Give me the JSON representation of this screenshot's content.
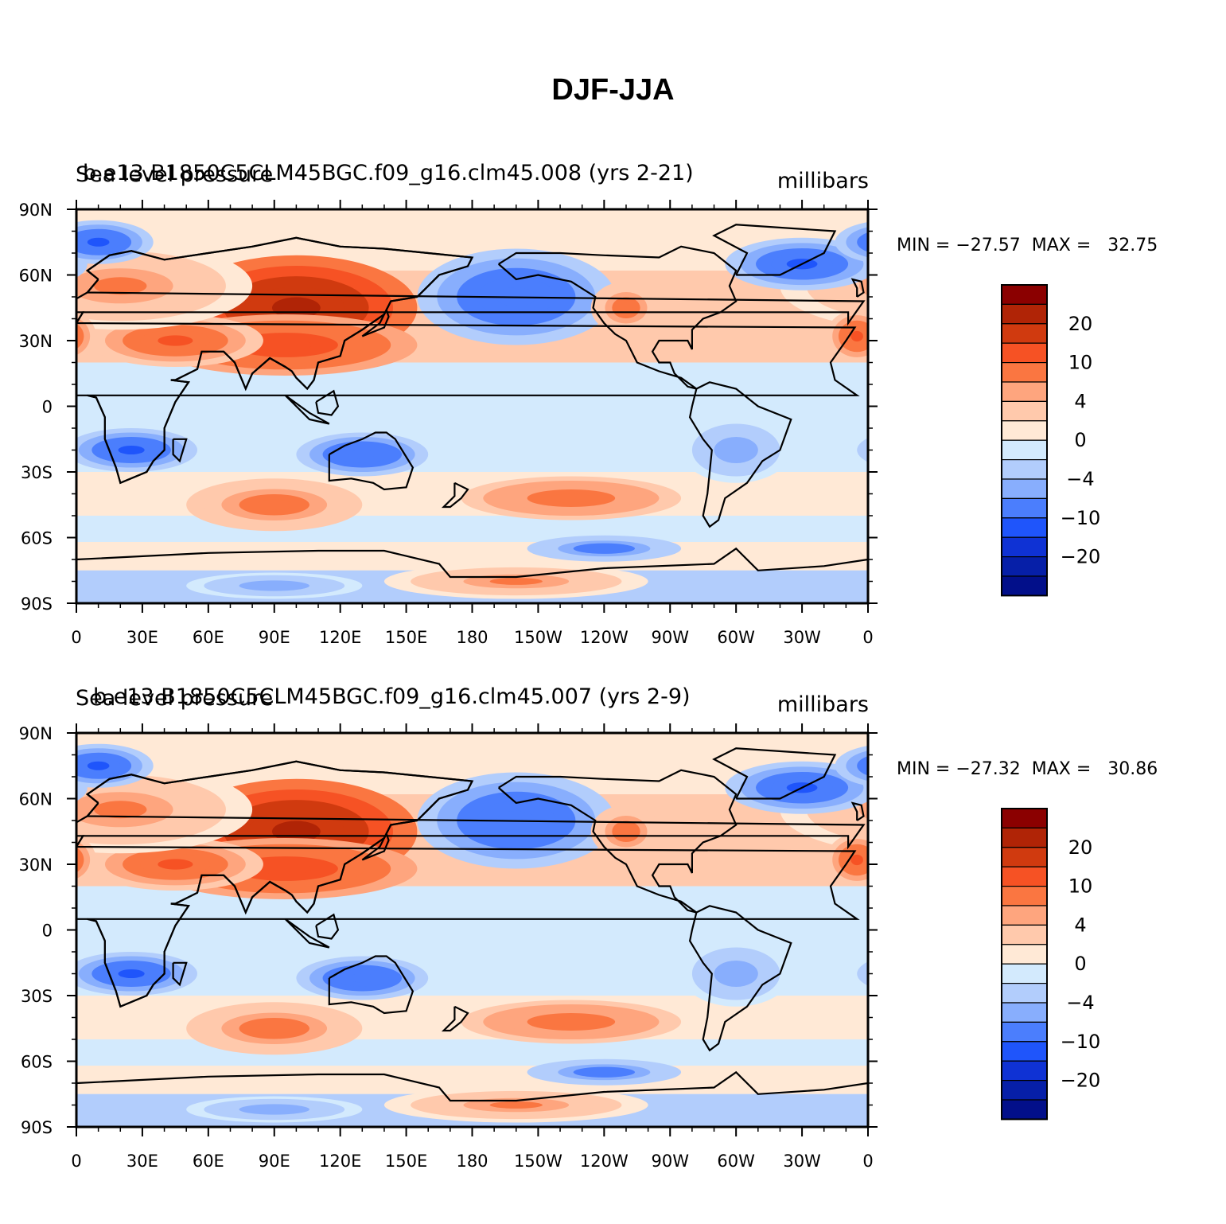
{
  "title": "DJF-JJA",
  "x_ticks": [
    "0",
    "30E",
    "60E",
    "90E",
    "120E",
    "150E",
    "180",
    "150W",
    "120W",
    "90W",
    "60W",
    "30W",
    "0"
  ],
  "y_ticks": [
    "90N",
    "60N",
    "30N",
    "0",
    "30S",
    "60S",
    "90S"
  ],
  "colorbar": {
    "colors": [
      "#8b0000",
      "#b02406",
      "#d03a0f",
      "#f65224",
      "#fa7641",
      "#fea57e",
      "#ffc9ac",
      "#ffe9d6",
      "#d3eafd",
      "#b2cdfc",
      "#88aefd",
      "#4b7efd",
      "#1f55fb",
      "#0f32d4",
      "#061fa8",
      "#020f8a"
    ],
    "labels": [
      "20",
      "10",
      "4",
      "0",
      "−4",
      "−10",
      "−20"
    ]
  },
  "panels": [
    {
      "left_text": "Sea level pressure",
      "center_text": "b.e13.B1850C5CLM45BGC.f09_g16.clm45.008 (yrs 2-21)",
      "right_text": "millibars",
      "stats": "MIN = −27.57  MAX =   32.75",
      "min": -27.57,
      "max": 32.75
    },
    {
      "left_text": "Sea level pressure",
      "center_text": "b.e13.B1850C5CLM45BGC.f09_g16.clm45.007 (yrs 2-9)",
      "right_text": "millibars",
      "stats": "MIN = −27.32  MAX =   30.86",
      "min": -27.32,
      "max": 30.86
    }
  ]
}
